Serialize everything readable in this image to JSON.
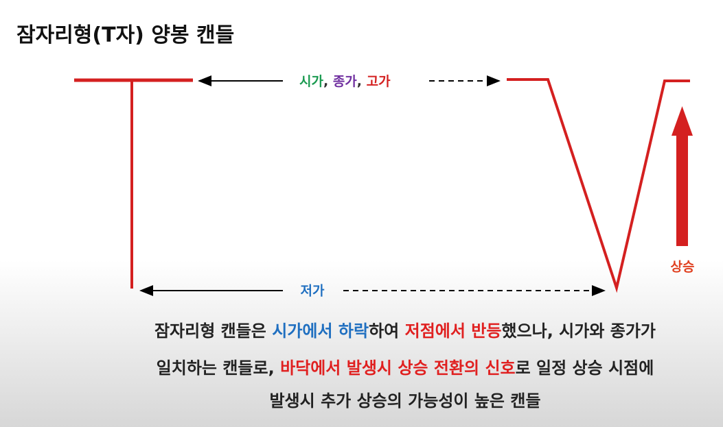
{
  "title": "잠자리형(T자) 양봉 캔들",
  "top_label": [
    "시가",
    ", ",
    "종가",
    ", ",
    "고가"
  ],
  "bottom_label": "저가",
  "rise_label": "상승",
  "caption": [
    [
      "잠자리형 캔들은 ",
      "시가에서 하락",
      "하여 ",
      "저점에서 반등",
      "했으나, 시가와 종가가"
    ],
    [
      "일치하는 캔들로, ",
      "바닥에서 발생시 상승 전환의 신호",
      "로 일정 상승 시점에"
    ],
    [
      "발생시 추가 상승의 가능성이 높은 캔들"
    ]
  ]
}
